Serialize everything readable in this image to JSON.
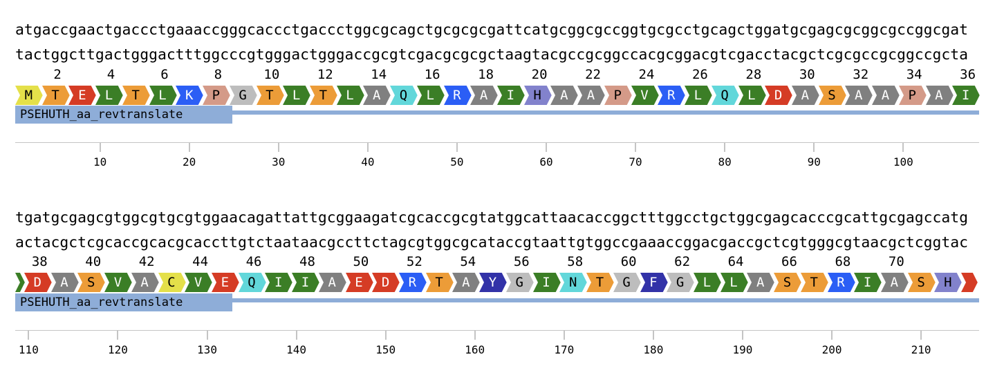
{
  "feature": {
    "name": "PSEHUTH_aa_revtranslate",
    "color": "#8eadd8"
  },
  "colors": {
    "M": "#e4e04a",
    "T": "#ec9c38",
    "E": "#d53c25",
    "D": "#d53c25",
    "L": "#3b7e26",
    "I": "#3b7e26",
    "V": "#3b7e26",
    "K": "#2b5ef5",
    "R": "#2b5ef5",
    "P": "#d49a88",
    "G": "#bdbdbd",
    "A": "#808080",
    "Q": "#62d7da",
    "N": "#62d7da",
    "H": "#8282cc",
    "S": "#ec9c38",
    "C": "#e4e04a",
    "Y": "#3232a8",
    "F": "#3232a8",
    "partial": "#d53c25"
  },
  "rows": [
    {
      "top_strand": "atgaccgaactgaccctgaaaccgggcaccctgaccctggcgcagctgcgcgcgattcatgcggcgccggtgcgcctgcagctggatgcgagcgcggcgccggcgat",
      "bottom_strand": "tactggcttgactgggactttggcccgtgggactgggaccgcgtcgacgcgcgctaagtacgccgcggccacgcggacgtcgacctacgctcgcgccgcggccgcta",
      "aa_start_offset": 0,
      "residues": [
        "M",
        "T",
        "E",
        "L",
        "T",
        "L",
        "K",
        "P",
        "G",
        "T",
        "L",
        "T",
        "L",
        "A",
        "Q",
        "L",
        "R",
        "A",
        "I",
        "H",
        "A",
        "A",
        "P",
        "V",
        "R",
        "L",
        "Q",
        "L",
        "D",
        "A",
        "S",
        "A",
        "A",
        "P",
        "A",
        "I"
      ],
      "residue_numbers": [
        "2",
        "4",
        "6",
        "8",
        "10",
        "12",
        "14",
        "16",
        "18",
        "20",
        "22",
        "24",
        "26",
        "28",
        "30",
        "32",
        "34",
        "36"
      ],
      "ruler_ticks": [
        "10",
        "20",
        "30",
        "40",
        "50",
        "60",
        "70",
        "80",
        "90",
        "100"
      ]
    },
    {
      "top_strand": "tgatgcgagcgtggcgtgcgtggaacagattattgcggaagatcgcaccgcgtatggcattaacaccggctttggcctgctggcgagcacccgcattgcgagccatg",
      "bottom_strand": "actacgctcgcaccgcacgcaccttgtctaataacgccttctagcgtggcgcataccgtaattgtggccgaaaccggacgaccgctcgtgggcgtaacgctcggtac",
      "residues": [
        "D",
        "A",
        "S",
        "V",
        "A",
        "C",
        "V",
        "E",
        "Q",
        "I",
        "I",
        "A",
        "E",
        "D",
        "R",
        "T",
        "A",
        "Y",
        "G",
        "I",
        "N",
        "T",
        "G",
        "F",
        "G",
        "L",
        "L",
        "A",
        "S",
        "T",
        "R",
        "I",
        "A",
        "S",
        "H"
      ],
      "residue_numbers": [
        "38",
        "40",
        "42",
        "44",
        "46",
        "48",
        "50",
        "52",
        "54",
        "56",
        "58",
        "60",
        "62",
        "64",
        "66",
        "68",
        "70"
      ],
      "ruler_ticks": [
        "110",
        "120",
        "130",
        "140",
        "150",
        "160",
        "170",
        "180",
        "190",
        "200",
        "210"
      ]
    }
  ]
}
